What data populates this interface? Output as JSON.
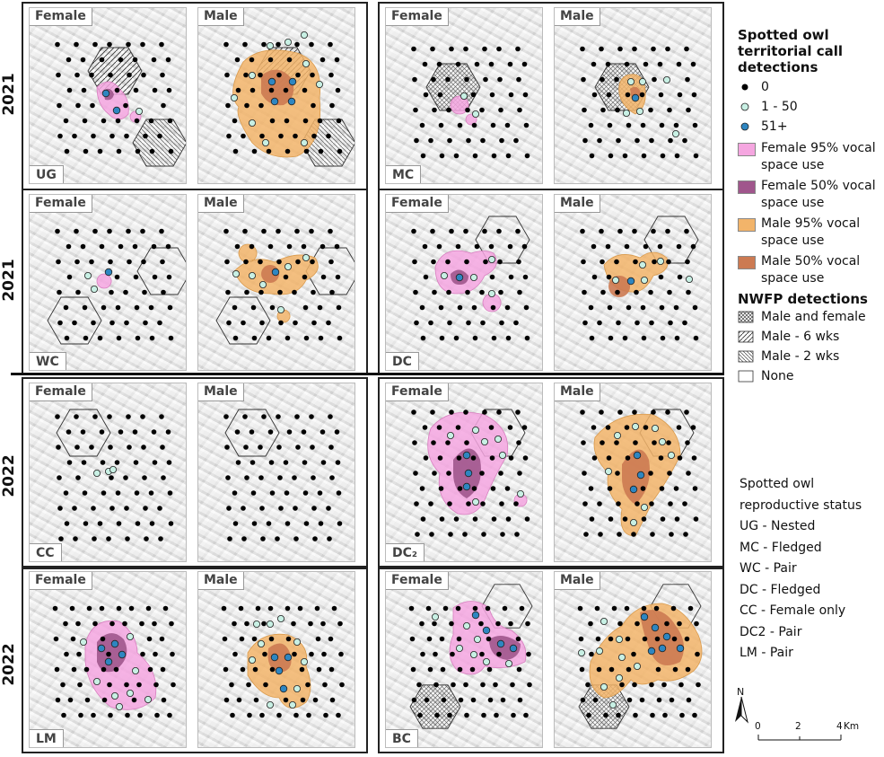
{
  "years": [
    "2021",
    "2021",
    "2022",
    "2022"
  ],
  "panel_labels": {
    "female": "Female",
    "male": "Male"
  },
  "sites": [
    {
      "code": "UG",
      "year": "2021"
    },
    {
      "code": "MC",
      "year": "2021"
    },
    {
      "code": "WC",
      "year": "2021"
    },
    {
      "code": "DC",
      "year": "2021"
    },
    {
      "code": "CC",
      "year": "2022"
    },
    {
      "code": "DC₂",
      "year": "2022"
    },
    {
      "code": "LM",
      "year": "2022"
    },
    {
      "code": "BC",
      "year": "2022"
    }
  ],
  "legend": {
    "detections_title": "Spotted owl territorial call detections",
    "detection_classes": [
      "0",
      "1 - 50",
      "51+"
    ],
    "vocal_space": [
      {
        "label": "Female 95% vocal space use",
        "color": "#f5a6e0"
      },
      {
        "label": "Female 50% vocal space use",
        "color": "#a0568c"
      },
      {
        "label": "Male 95% vocal space use",
        "color": "#f2b46a"
      },
      {
        "label": "Male 50% vocal space use",
        "color": "#cc7a52"
      }
    ],
    "nwfp_title": "NWFP detections",
    "nwfp_classes": [
      "Male and female",
      "Male - 6 wks",
      "Male - 2 wks",
      "None"
    ]
  },
  "reproductive_status": {
    "title_line1": "Spotted owl",
    "title_line2": "reproductive status",
    "items": [
      "UG - Nested",
      "MC - Fledged",
      "WC - Pair",
      "DC - Fledged",
      "CC - Female only",
      "DC2 - Pair",
      "LM - Pair"
    ]
  },
  "scale_bar": {
    "north": "N",
    "ticks": [
      "0",
      "2",
      "4"
    ],
    "unit": "Km"
  },
  "colors": {
    "detect_zero": "#000000",
    "detect_low": "#c8f0e4",
    "detect_high": "#2e86c1",
    "female95": "#f5a6e0",
    "female50": "#a0568c",
    "male95": "#f2b46a",
    "male50": "#cc7a52"
  }
}
